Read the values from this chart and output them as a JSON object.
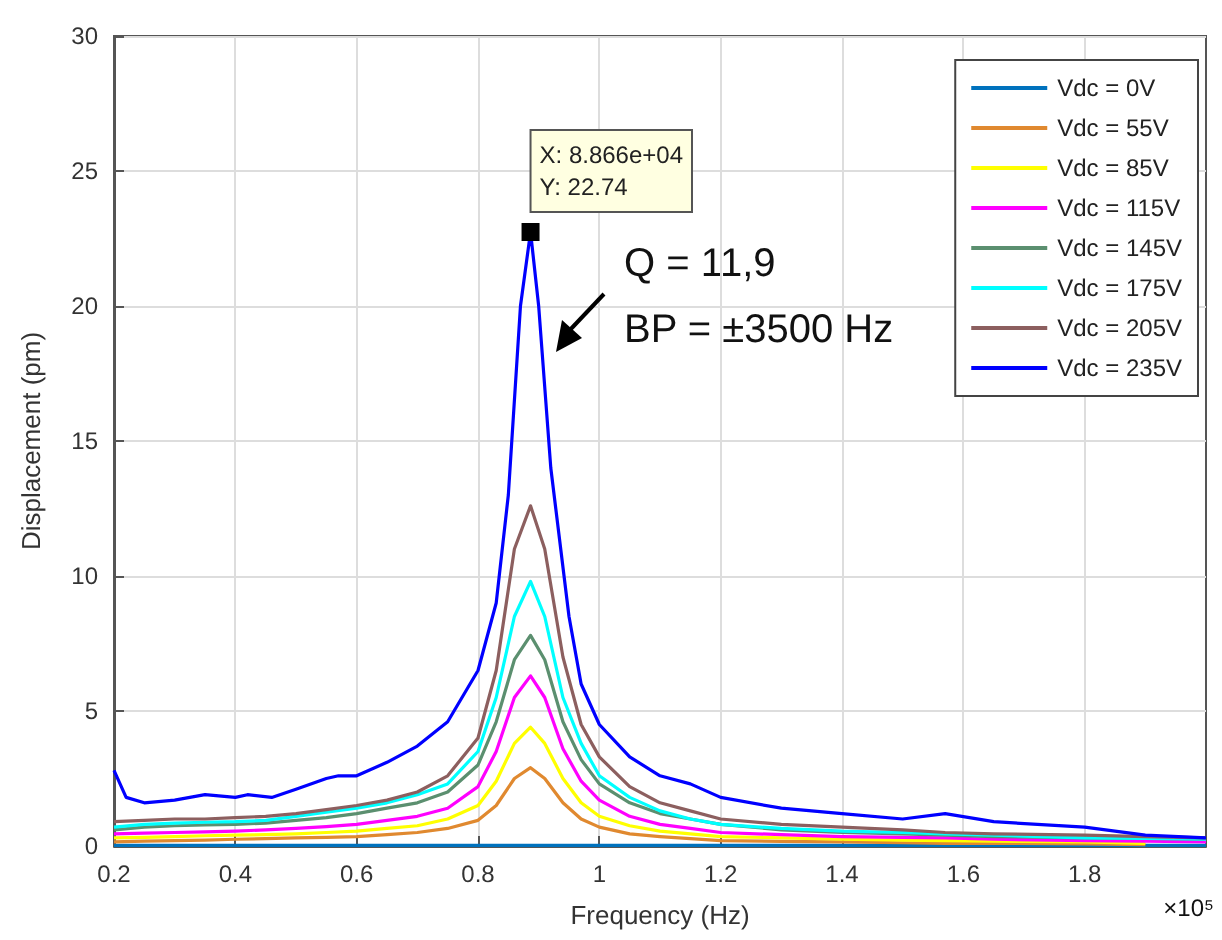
{
  "chart_data": {
    "type": "line",
    "xlabel": "Frequency (Hz)",
    "ylabel": "Displacement (pm)",
    "x": [
      0.2,
      0.25,
      0.3,
      0.35,
      0.4,
      0.45,
      0.5,
      0.55,
      0.6,
      0.65,
      0.7,
      0.75,
      0.8,
      0.83,
      0.86,
      0.8866,
      0.91,
      0.94,
      0.97,
      1.0,
      1.05,
      1.1,
      1.15,
      1.2,
      1.3,
      1.4,
      1.5,
      1.57,
      1.65,
      1.8,
      1.9,
      2.0
    ],
    "series": [
      {
        "name": "Vdc = 0V",
        "color": "#0072bd",
        "values": [
          0.02,
          0.02,
          0.02,
          0.02,
          0.02,
          0.02,
          0.02,
          0.02,
          0.02,
          0.02,
          0.02,
          0.02,
          0.02,
          0.02,
          0.02,
          0.02,
          0.02,
          0.02,
          0.02,
          0.02,
          0.02,
          0.02,
          0.02,
          0.02,
          0.02,
          0.02,
          0.02,
          0.02,
          0.02,
          0.02,
          0.02,
          0.02
        ]
      },
      {
        "name": "Vdc = 55V",
        "color": "#e0892f",
        "values": [
          0.15,
          0.18,
          0.2,
          0.22,
          0.25,
          0.27,
          0.3,
          0.32,
          0.35,
          0.42,
          0.5,
          0.65,
          0.95,
          1.5,
          2.5,
          2.9,
          2.5,
          1.6,
          1.0,
          0.7,
          0.45,
          0.35,
          0.27,
          0.2,
          0.17,
          0.15,
          0.12,
          0.1,
          0.1,
          0.08,
          0.05,
          null
        ]
      },
      {
        "name": "Vdc = 85V",
        "color": "#ffff00",
        "values": [
          0.3,
          0.32,
          0.35,
          0.38,
          0.4,
          0.42,
          0.45,
          0.5,
          0.55,
          0.65,
          0.75,
          1.0,
          1.5,
          2.4,
          3.8,
          4.4,
          3.8,
          2.5,
          1.6,
          1.1,
          0.75,
          0.55,
          0.45,
          0.35,
          0.3,
          0.25,
          0.22,
          0.2,
          0.18,
          0.15,
          0.1,
          null
        ]
      },
      {
        "name": "Vdc = 115V",
        "color": "#ff00ff",
        "values": [
          0.45,
          0.48,
          0.5,
          0.52,
          0.55,
          0.6,
          0.65,
          0.72,
          0.8,
          0.95,
          1.1,
          1.4,
          2.2,
          3.5,
          5.5,
          6.3,
          5.5,
          3.6,
          2.4,
          1.7,
          1.1,
          0.8,
          0.65,
          0.5,
          0.42,
          0.35,
          0.32,
          0.3,
          0.25,
          0.2,
          0.18,
          0.15
        ]
      },
      {
        "name": "Vdc = 145V",
        "color": "#5b8f6f",
        "values": [
          0.6,
          0.7,
          0.75,
          0.78,
          0.8,
          0.85,
          0.95,
          1.05,
          1.2,
          1.4,
          1.6,
          2.0,
          3.0,
          4.6,
          6.9,
          7.8,
          6.9,
          4.6,
          3.2,
          2.3,
          1.6,
          1.2,
          1.0,
          0.8,
          0.6,
          0.5,
          0.45,
          0.4,
          0.35,
          0.3,
          0.28,
          0.25
        ]
      },
      {
        "name": "Vdc = 175V",
        "color": "#00ffff",
        "values": [
          0.7,
          0.8,
          0.85,
          0.88,
          0.9,
          0.95,
          1.1,
          1.25,
          1.4,
          1.6,
          1.9,
          2.3,
          3.5,
          5.5,
          8.5,
          9.8,
          8.5,
          5.5,
          3.8,
          2.6,
          1.8,
          1.3,
          1.0,
          0.8,
          0.65,
          0.55,
          0.5,
          0.45,
          0.4,
          0.3,
          0.28,
          0.25
        ]
      },
      {
        "name": "Vdc = 205V",
        "color": "#8c5f5f",
        "values": [
          0.9,
          0.95,
          1.0,
          1.0,
          1.05,
          1.1,
          1.2,
          1.35,
          1.5,
          1.7,
          2.0,
          2.6,
          4.0,
          6.5,
          11,
          12.6,
          11,
          7.0,
          4.5,
          3.3,
          2.2,
          1.6,
          1.3,
          1.0,
          0.8,
          0.7,
          0.6,
          0.5,
          0.45,
          0.4,
          0.35,
          0.3
        ]
      },
      {
        "name": "Vdc = 235V",
        "color": "#0000ff",
        "x": [
          0.2,
          0.22,
          0.25,
          0.3,
          0.35,
          0.4,
          0.42,
          0.46,
          0.5,
          0.55,
          0.57,
          0.6,
          0.65,
          0.7,
          0.75,
          0.8,
          0.83,
          0.85,
          0.87,
          0.8866,
          0.9,
          0.92,
          0.95,
          0.97,
          1.0,
          1.05,
          1.1,
          1.15,
          1.2,
          1.3,
          1.4,
          1.5,
          1.57,
          1.65,
          1.8,
          1.9,
          2.0
        ],
        "values": [
          2.8,
          1.8,
          1.6,
          1.7,
          1.9,
          1.8,
          1.9,
          1.8,
          2.1,
          2.5,
          2.6,
          2.6,
          3.1,
          3.7,
          4.6,
          6.5,
          9,
          13,
          20,
          22.74,
          20,
          14,
          8.5,
          6,
          4.5,
          3.3,
          2.6,
          2.3,
          1.8,
          1.4,
          1.2,
          1.0,
          1.2,
          0.9,
          0.7,
          0.4,
          0.3
        ]
      }
    ],
    "xlim": [
      0.2,
      2.0
    ],
    "xticks": [
      0.2,
      0.4,
      0.6,
      0.8,
      1,
      1.2,
      1.4,
      1.6,
      1.8
    ],
    "ylim": [
      0,
      30
    ],
    "yticks": [
      0,
      5,
      10,
      15,
      20,
      25,
      30
    ],
    "grid": true,
    "legend": "top right",
    "annotations": [
      {
        "text": "X: 8.866e+04\nY: 22.74",
        "x": 0.8866,
        "y": 22.74
      },
      "Q = 11,9",
      "BP = ±3500 Hz",
      "×10⁵"
    ]
  }
}
